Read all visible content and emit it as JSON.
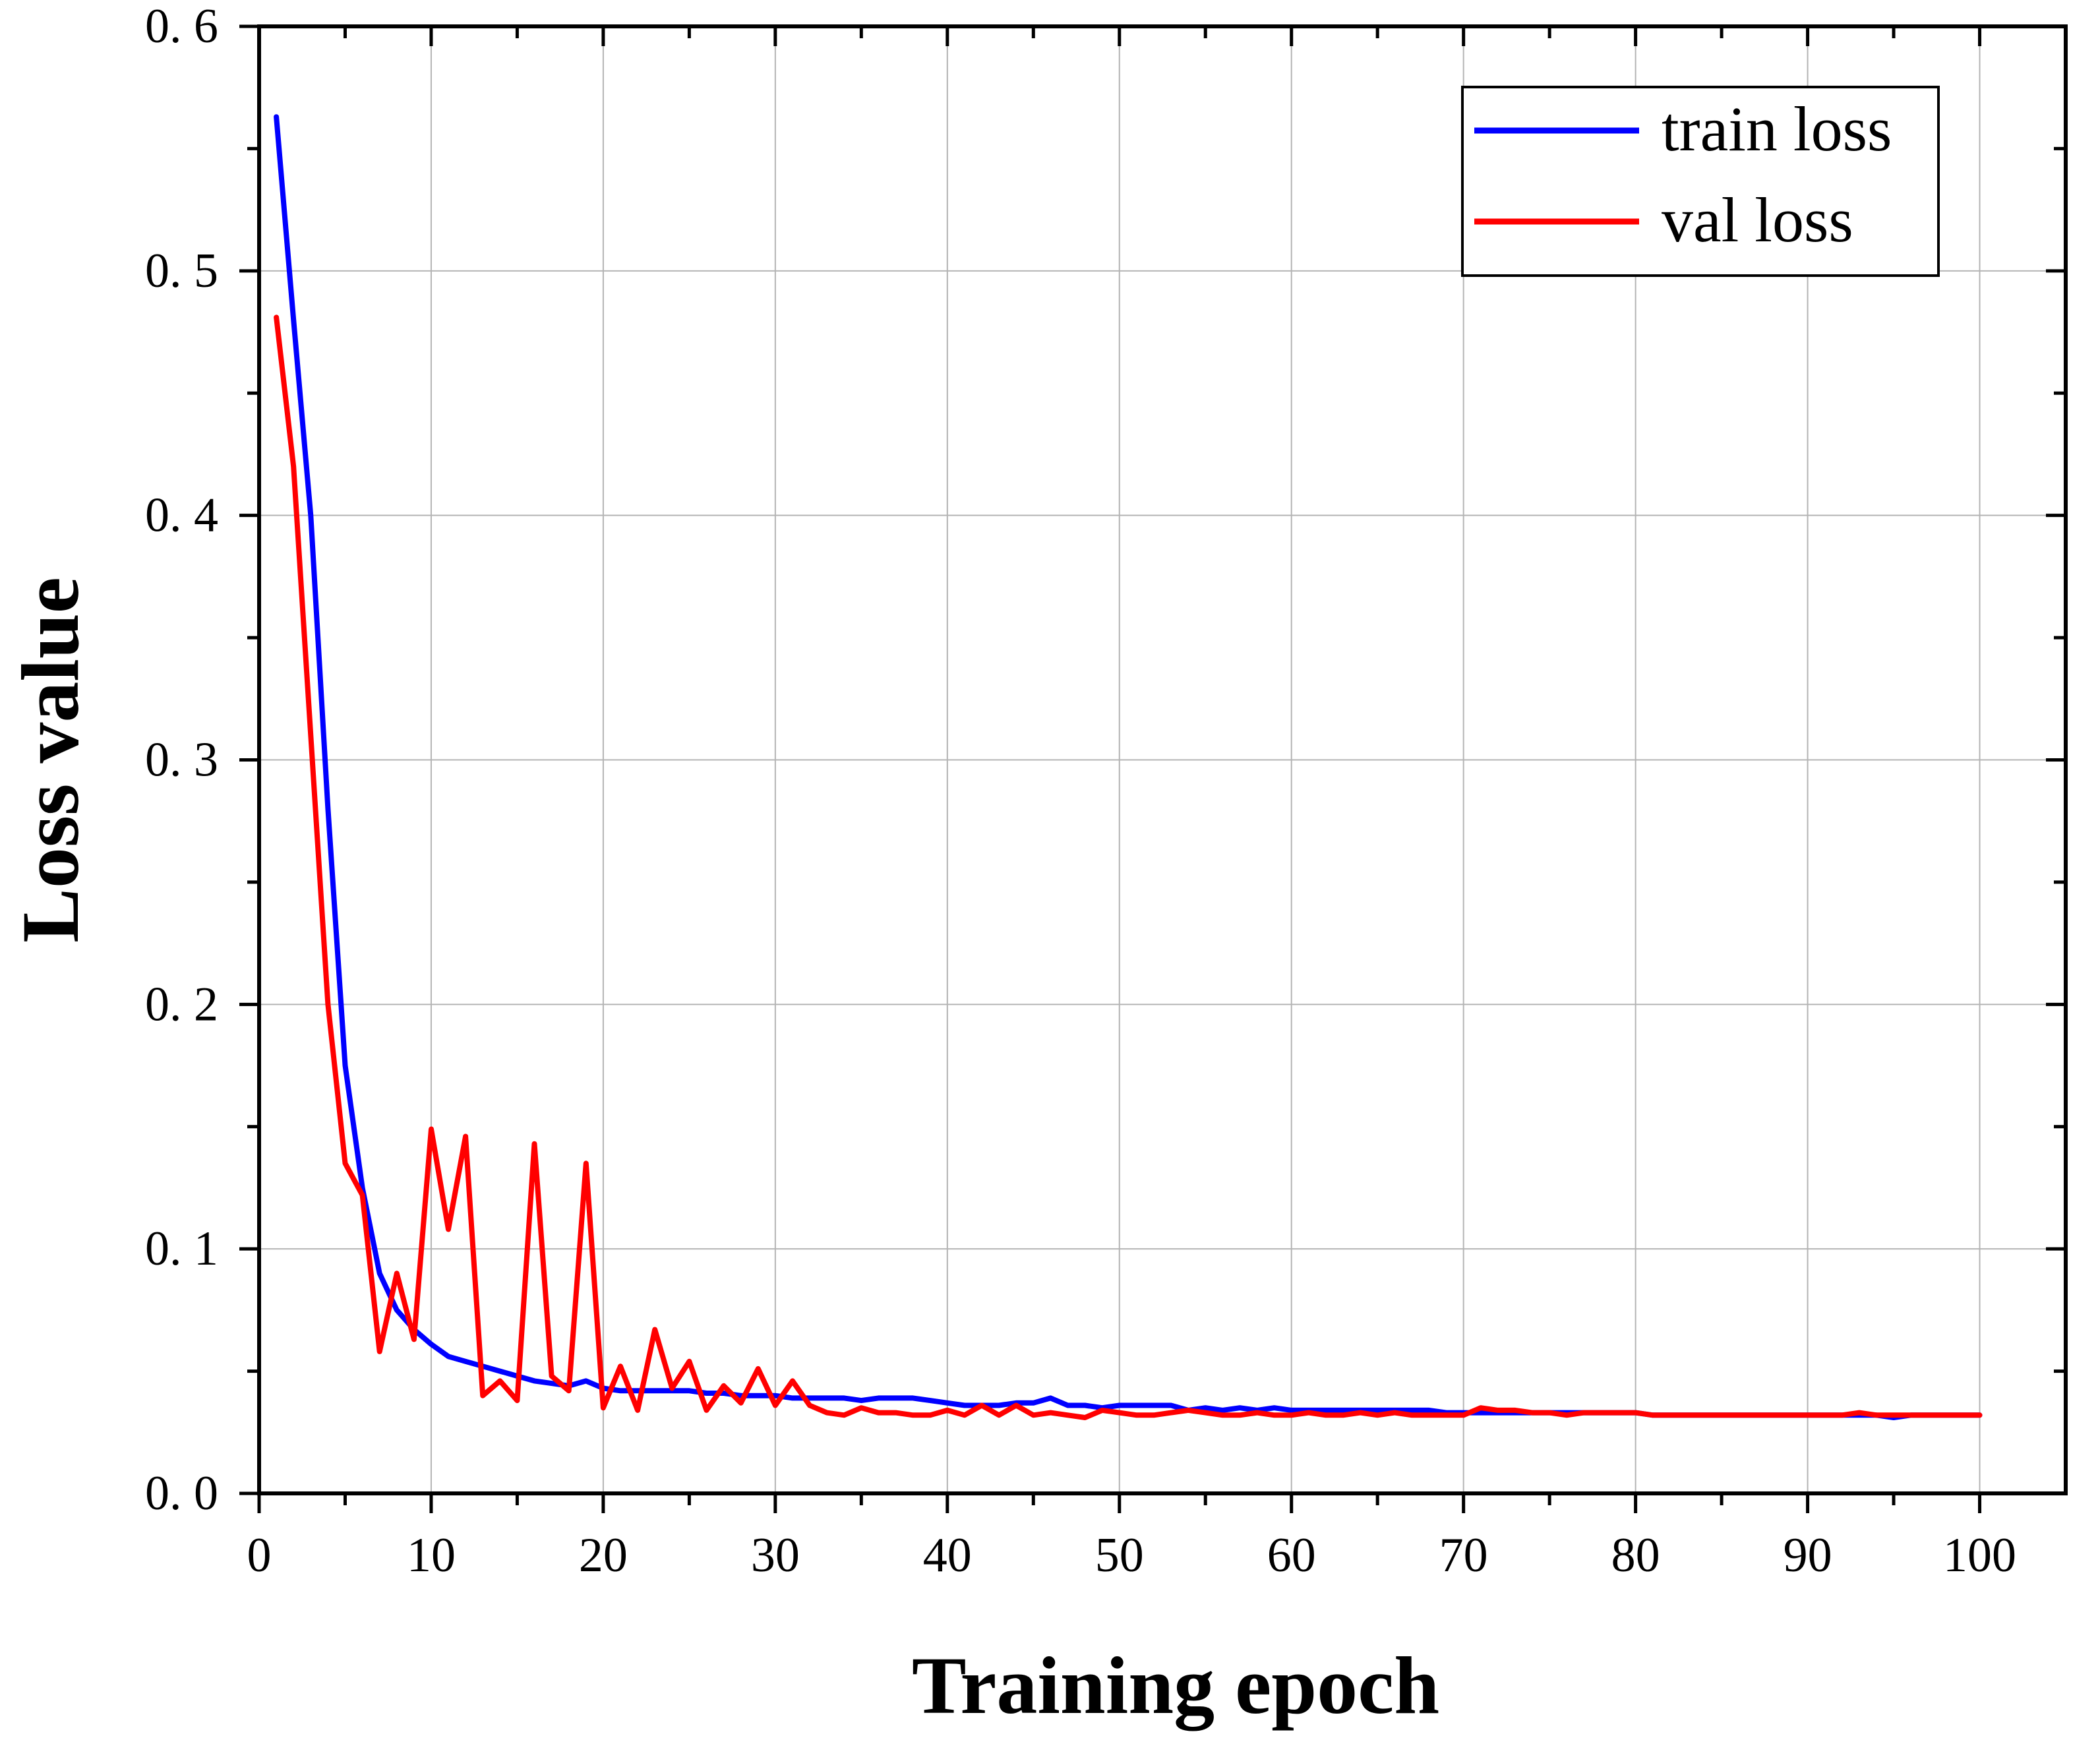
{
  "chart_data": {
    "type": "line",
    "xlabel": "Training epoch",
    "ylabel": "Loss value",
    "xlim": [
      0,
      105
    ],
    "ylim": [
      0.0,
      0.6
    ],
    "xticks": [
      0,
      10,
      20,
      30,
      40,
      50,
      60,
      70,
      80,
      90,
      100
    ],
    "xtick_labels": [
      "0",
      "10",
      "20",
      "30",
      "40",
      "50",
      "60",
      "70",
      "80",
      "90",
      "100"
    ],
    "yticks": [
      0.0,
      0.1,
      0.2,
      0.3,
      0.4,
      0.5,
      0.6
    ],
    "ytick_labels": [
      "0. 0",
      "0. 1",
      "0. 2",
      "0. 3",
      "0. 4",
      "0. 5",
      "0. 6"
    ],
    "grid": true,
    "legend_position": "top-right",
    "series": [
      {
        "name": "train loss",
        "color": "#0000ff",
        "x": [
          1,
          2,
          3,
          4,
          5,
          6,
          7,
          8,
          9,
          10,
          11,
          12,
          13,
          14,
          15,
          16,
          17,
          18,
          19,
          20,
          21,
          22,
          23,
          24,
          25,
          26,
          27,
          28,
          29,
          30,
          31,
          32,
          33,
          34,
          35,
          36,
          37,
          38,
          39,
          40,
          41,
          42,
          43,
          44,
          45,
          46,
          47,
          48,
          49,
          50,
          51,
          52,
          53,
          54,
          55,
          56,
          57,
          58,
          59,
          60,
          61,
          62,
          63,
          64,
          65,
          66,
          67,
          68,
          69,
          70,
          71,
          72,
          73,
          74,
          75,
          76,
          77,
          78,
          79,
          80,
          81,
          82,
          83,
          84,
          85,
          86,
          87,
          88,
          89,
          90,
          91,
          92,
          93,
          94,
          95,
          96,
          97,
          98,
          99,
          100
        ],
        "values": [
          0.563,
          0.48,
          0.4,
          0.28,
          0.175,
          0.125,
          0.09,
          0.075,
          0.067,
          0.061,
          0.056,
          0.054,
          0.052,
          0.05,
          0.048,
          0.046,
          0.045,
          0.044,
          0.046,
          0.043,
          0.042,
          0.042,
          0.042,
          0.042,
          0.042,
          0.041,
          0.041,
          0.04,
          0.04,
          0.04,
          0.039,
          0.039,
          0.039,
          0.039,
          0.038,
          0.039,
          0.039,
          0.039,
          0.038,
          0.037,
          0.036,
          0.036,
          0.036,
          0.037,
          0.037,
          0.039,
          0.036,
          0.036,
          0.035,
          0.036,
          0.036,
          0.036,
          0.036,
          0.034,
          0.035,
          0.034,
          0.035,
          0.034,
          0.035,
          0.034,
          0.034,
          0.034,
          0.034,
          0.034,
          0.034,
          0.034,
          0.034,
          0.034,
          0.033,
          0.033,
          0.033,
          0.033,
          0.033,
          0.033,
          0.033,
          0.033,
          0.033,
          0.033,
          0.033,
          0.033,
          0.032,
          0.032,
          0.032,
          0.032,
          0.032,
          0.032,
          0.032,
          0.032,
          0.032,
          0.032,
          0.032,
          0.032,
          0.032,
          0.032,
          0.031,
          0.032,
          0.032,
          0.032,
          0.032,
          0.032
        ]
      },
      {
        "name": "val loss",
        "color": "#ff0000",
        "x": [
          1,
          2,
          3,
          4,
          5,
          6,
          7,
          8,
          9,
          10,
          11,
          12,
          13,
          14,
          15,
          16,
          17,
          18,
          19,
          20,
          21,
          22,
          23,
          24,
          25,
          26,
          27,
          28,
          29,
          30,
          31,
          32,
          33,
          34,
          35,
          36,
          37,
          38,
          39,
          40,
          41,
          42,
          43,
          44,
          45,
          46,
          47,
          48,
          49,
          50,
          51,
          52,
          53,
          54,
          55,
          56,
          57,
          58,
          59,
          60,
          61,
          62,
          63,
          64,
          65,
          66,
          67,
          68,
          69,
          70,
          71,
          72,
          73,
          74,
          75,
          76,
          77,
          78,
          79,
          80,
          81,
          82,
          83,
          84,
          85,
          86,
          87,
          88,
          89,
          90,
          91,
          92,
          93,
          94,
          95,
          96,
          97,
          98,
          99,
          100
        ],
        "values": [
          0.481,
          0.42,
          0.31,
          0.2,
          0.135,
          0.122,
          0.058,
          0.09,
          0.063,
          0.149,
          0.108,
          0.146,
          0.04,
          0.046,
          0.038,
          0.143,
          0.048,
          0.042,
          0.135,
          0.035,
          0.052,
          0.034,
          0.067,
          0.043,
          0.054,
          0.034,
          0.044,
          0.037,
          0.051,
          0.036,
          0.046,
          0.036,
          0.033,
          0.032,
          0.035,
          0.033,
          0.033,
          0.032,
          0.032,
          0.034,
          0.032,
          0.036,
          0.032,
          0.036,
          0.032,
          0.033,
          0.032,
          0.031,
          0.034,
          0.033,
          0.032,
          0.032,
          0.033,
          0.034,
          0.033,
          0.032,
          0.032,
          0.033,
          0.032,
          0.032,
          0.033,
          0.032,
          0.032,
          0.033,
          0.032,
          0.033,
          0.032,
          0.032,
          0.032,
          0.032,
          0.035,
          0.034,
          0.034,
          0.033,
          0.033,
          0.032,
          0.033,
          0.033,
          0.033,
          0.033,
          0.032,
          0.032,
          0.032,
          0.032,
          0.032,
          0.032,
          0.032,
          0.032,
          0.032,
          0.032,
          0.032,
          0.032,
          0.033,
          0.032,
          0.032,
          0.032,
          0.032,
          0.032,
          0.032,
          0.032
        ]
      }
    ]
  }
}
